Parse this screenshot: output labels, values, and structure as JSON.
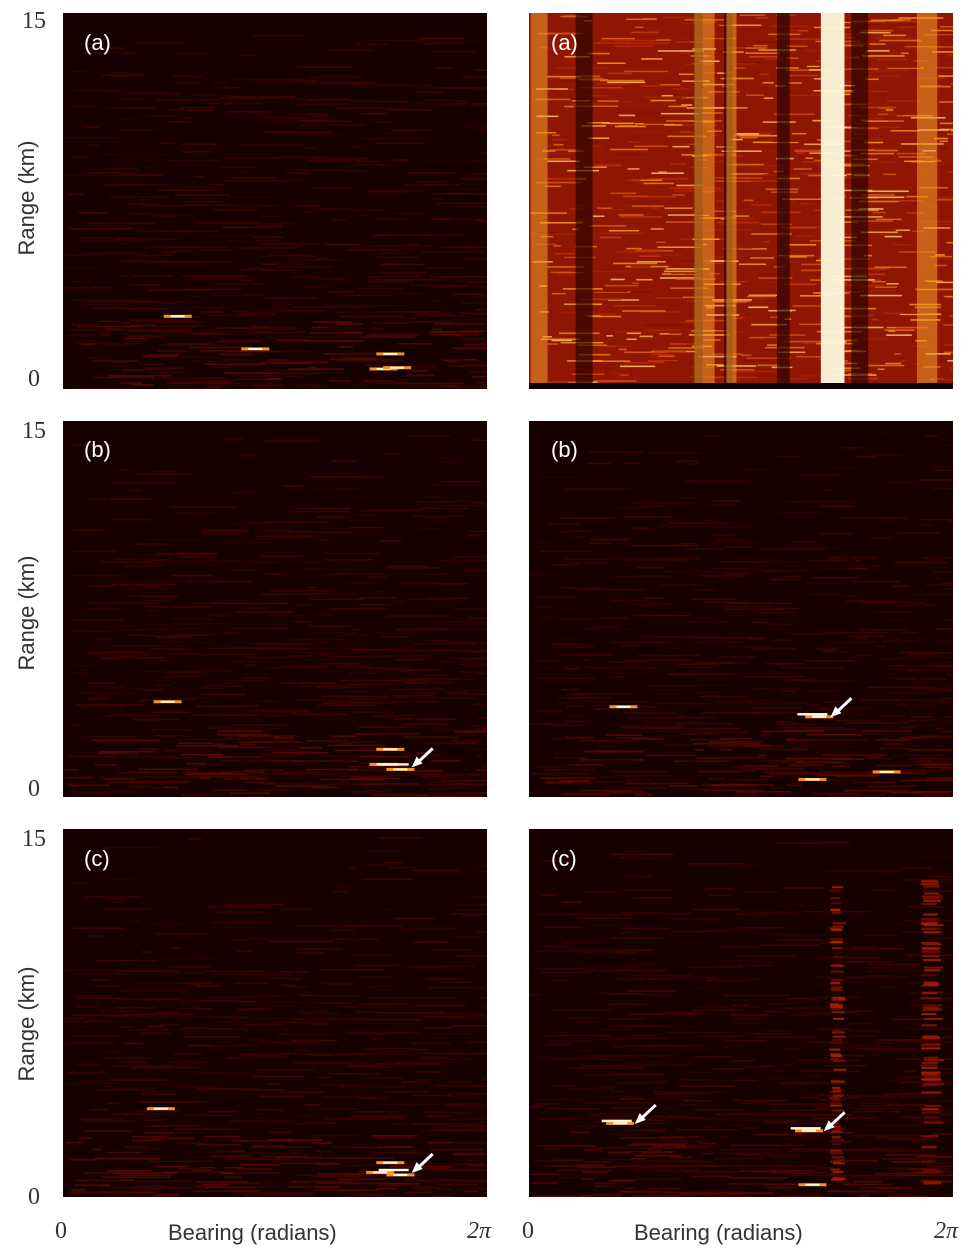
{
  "chart_data": [
    {
      "type": "heatmap",
      "panel": "(a)",
      "column": "left",
      "xlabel": "",
      "ylabel": "Range (km)",
      "xlim_labels": [
        "0",
        "2π"
      ],
      "ylim": [
        0,
        15
      ],
      "ytick_labels": [
        "15",
        "0"
      ],
      "background": "low",
      "hotspots": [
        {
          "bearing": 1.7,
          "range": 2.9
        },
        {
          "bearing": 2.85,
          "range": 1.6
        },
        {
          "bearing": 4.75,
          "range": 0.8
        },
        {
          "bearing": 4.95,
          "range": 0.85
        },
        {
          "bearing": 4.85,
          "range": 1.4
        }
      ],
      "arrows": []
    },
    {
      "type": "heatmap",
      "panel": "(a)",
      "column": "right",
      "xlabel": "",
      "ylabel": "",
      "xlim_labels": [
        "",
        ""
      ],
      "ylim": [
        0,
        15
      ],
      "ytick_labels": [],
      "background": "high",
      "bright_bands": [
        {
          "bearing": 0.15,
          "width": 0.25
        },
        {
          "bearing": 2.6,
          "width": 0.3
        },
        {
          "bearing": 3.0,
          "width": 0.15
        },
        {
          "bearing": 4.5,
          "width": 0.35
        },
        {
          "bearing": 5.9,
          "width": 0.3
        }
      ],
      "arrows": []
    },
    {
      "type": "heatmap",
      "panel": "(b)",
      "column": "left",
      "xlabel": "",
      "ylabel": "Range (km)",
      "xlim_labels": [
        "",
        ""
      ],
      "ylim": [
        0,
        15
      ],
      "ytick_labels": [
        "15",
        "0"
      ],
      "background": "low",
      "hotspots": [
        {
          "bearing": 1.55,
          "range": 3.8
        },
        {
          "bearing": 4.75,
          "range": 1.3
        },
        {
          "bearing": 4.85,
          "range": 1.9
        },
        {
          "bearing": 5.0,
          "range": 1.1
        }
      ],
      "arrows": [
        {
          "bearing": 5.3,
          "range": 1.3
        }
      ]
    },
    {
      "type": "heatmap",
      "panel": "(b)",
      "column": "right",
      "xlabel": "",
      "ylabel": "",
      "xlim_labels": [
        "",
        ""
      ],
      "ylim": [
        0,
        15
      ],
      "ytick_labels": [],
      "background": "low",
      "hotspots": [
        {
          "bearing": 1.4,
          "range": 3.6
        },
        {
          "bearing": 4.3,
          "range": 3.2
        },
        {
          "bearing": 4.2,
          "range": 0.7
        },
        {
          "bearing": 5.3,
          "range": 1.0
        }
      ],
      "arrows": [
        {
          "bearing": 4.6,
          "range": 3.3
        }
      ]
    },
    {
      "type": "heatmap",
      "panel": "(c)",
      "column": "left",
      "xlabel": "Bearing (radians)",
      "ylabel": "Range (km)",
      "xlim_labels": [
        "0",
        "2π"
      ],
      "ylim": [
        0,
        15
      ],
      "ytick_labels": [
        "15",
        "0"
      ],
      "background": "low",
      "hotspots": [
        {
          "bearing": 1.45,
          "range": 3.6
        },
        {
          "bearing": 4.7,
          "range": 1.0
        },
        {
          "bearing": 4.85,
          "range": 1.4
        },
        {
          "bearing": 5.0,
          "range": 0.9
        }
      ],
      "arrows": [
        {
          "bearing": 5.3,
          "range": 1.1
        }
      ]
    },
    {
      "type": "heatmap",
      "panel": "(c)",
      "column": "right",
      "xlabel": "Bearing (radians)",
      "ylabel": "",
      "xlim_labels": [
        "0",
        "2π"
      ],
      "ylim": [
        0,
        15
      ],
      "ytick_labels": [],
      "background": "low",
      "faint_bands": [
        {
          "bearing": 4.55,
          "width": 0.2
        },
        {
          "bearing": 5.95,
          "width": 0.3
        }
      ],
      "hotspots": [
        {
          "bearing": 1.35,
          "range": 3.0
        },
        {
          "bearing": 4.15,
          "range": 2.7
        },
        {
          "bearing": 4.2,
          "range": 0.5
        }
      ],
      "arrows": [
        {
          "bearing": 1.7,
          "range": 3.1
        },
        {
          "bearing": 4.5,
          "range": 2.8
        }
      ]
    }
  ],
  "colors": {
    "map_low": "#120000",
    "map_mid": "#8a1004",
    "map_high": "#ffb020",
    "map_peak": "#fffde0"
  }
}
